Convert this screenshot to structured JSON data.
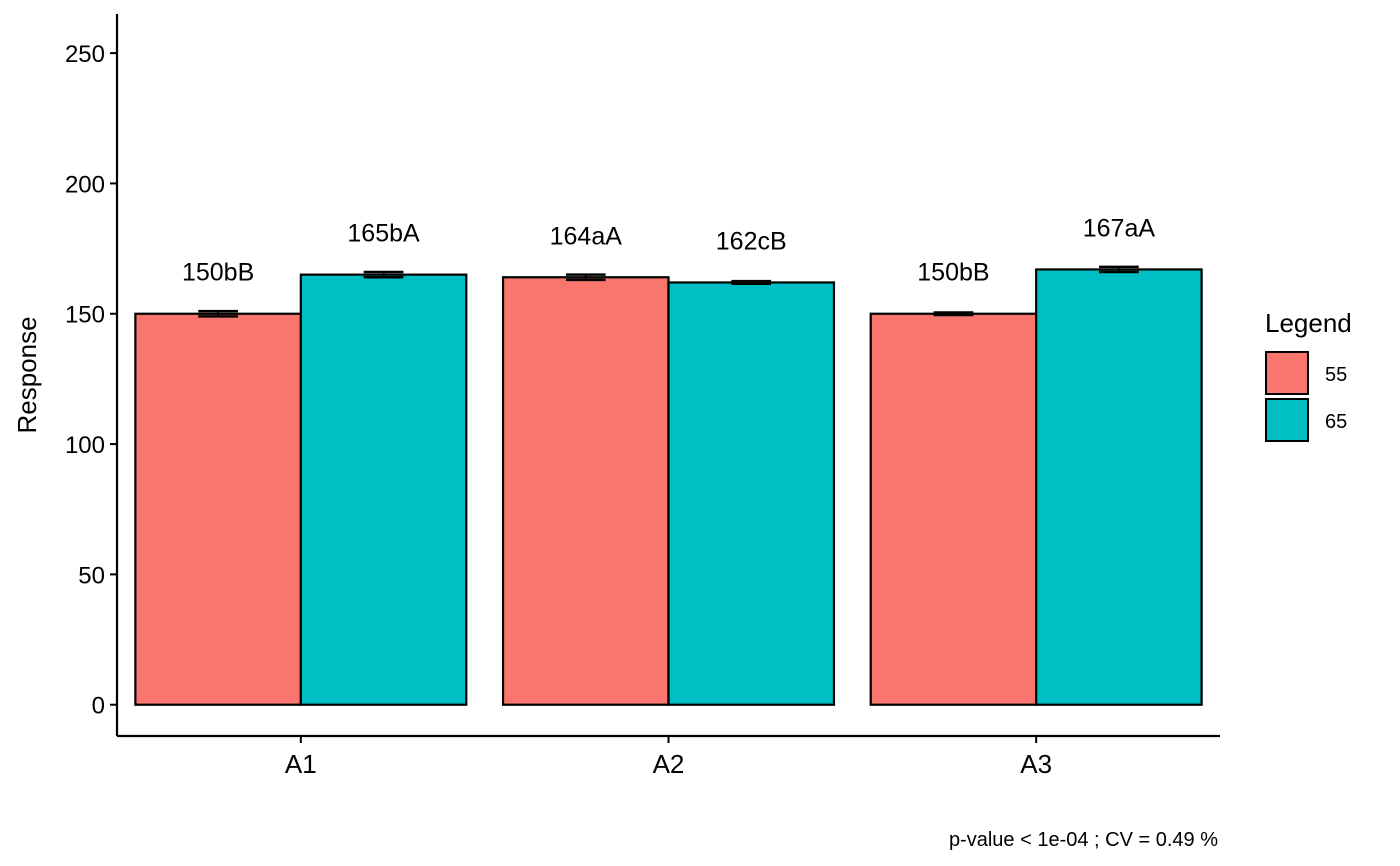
{
  "chart_data": {
    "type": "bar",
    "categories": [
      "A1",
      "A2",
      "A3"
    ],
    "series": [
      {
        "name": "55",
        "values": [
          150,
          164,
          150
        ],
        "errors": [
          1.0,
          1.0,
          0.5
        ],
        "labels": [
          "150bB",
          "164aA",
          "150bB"
        ],
        "color": "#F8766D"
      },
      {
        "name": "65",
        "values": [
          165,
          162,
          167
        ],
        "errors": [
          1.0,
          0.5,
          1.0
        ],
        "labels": [
          "165bA",
          "162cB",
          "167aA"
        ],
        "color": "#00BFC4"
      }
    ],
    "xlabel": "",
    "ylabel": "Response",
    "ylim": [
      -12,
      265
    ],
    "yticks": [
      0,
      50,
      100,
      150,
      200,
      250
    ],
    "legend": {
      "title": "Legend",
      "position": "right"
    },
    "caption": "p-value  < 1e-04 ; CV =  0.49 %",
    "grid": false
  }
}
